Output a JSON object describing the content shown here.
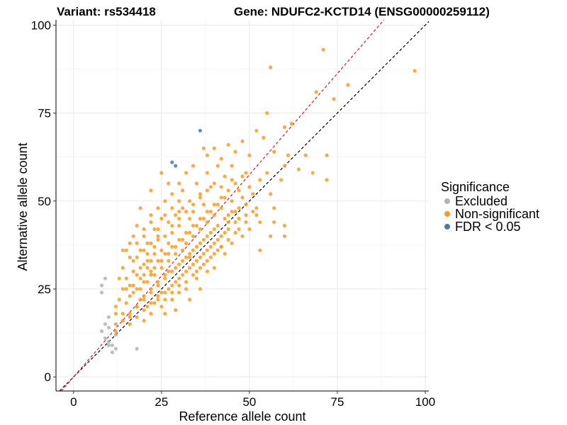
{
  "chart_data": {
    "type": "scatter",
    "title_left": "Variant: rs534418",
    "title_right": "Gene: NDUFC2-KCTD14 (ENSG00000259112)",
    "xlabel": "Reference allele count",
    "ylabel": "Alternative allele count",
    "xlim": [
      -5,
      101
    ],
    "ylim": [
      -4,
      101.5
    ],
    "xticks": [
      0,
      25,
      50,
      75,
      100
    ],
    "yticks": [
      0,
      25,
      50,
      75,
      100
    ],
    "grid": true,
    "legend": {
      "title": "Significance",
      "position": "right",
      "items": [
        {
          "label": "Excluded",
          "color": "#b3b3b3"
        },
        {
          "label": "Non-significant",
          "color": "#ff9a1f"
        },
        {
          "label": "FDR < 0.05",
          "color": "#4a79b0"
        }
      ]
    },
    "reference_lines": [
      {
        "slope": 1,
        "intercept": 0,
        "color": "#000000",
        "style": "dashed"
      },
      {
        "slope": 1.15,
        "intercept": 0,
        "color": "#e41a1c",
        "style": "dashed"
      }
    ],
    "series": [
      {
        "name": "Excluded",
        "color": "#b3b3b3",
        "points": [
          [
            8,
            26
          ],
          [
            8,
            24
          ],
          [
            9,
            28
          ],
          [
            10,
            17
          ],
          [
            9,
            15
          ],
          [
            10,
            14
          ],
          [
            8,
            13
          ],
          [
            9,
            11
          ],
          [
            10,
            10
          ],
          [
            11,
            9
          ],
          [
            11,
            7
          ],
          [
            12,
            8
          ],
          [
            10,
            9
          ],
          [
            18,
            8
          ],
          [
            12,
            12
          ]
        ]
      },
      {
        "name": "Non-significant",
        "color": "#ff9a1f",
        "points": [
          [
            71,
            93
          ],
          [
            56,
            88
          ],
          [
            97,
            87
          ],
          [
            69,
            81
          ],
          [
            78,
            83
          ],
          [
            74,
            79
          ],
          [
            55,
            75
          ],
          [
            62,
            72
          ],
          [
            60,
            71
          ],
          [
            52,
            70
          ],
          [
            54,
            68
          ],
          [
            48,
            67
          ],
          [
            44,
            66
          ],
          [
            46,
            64
          ],
          [
            40,
            65
          ],
          [
            38,
            63
          ],
          [
            42,
            62
          ],
          [
            50,
            63
          ],
          [
            57,
            64
          ],
          [
            61,
            63
          ],
          [
            66,
            63
          ],
          [
            72,
            63
          ],
          [
            60,
            60
          ],
          [
            64,
            59
          ],
          [
            68,
            58
          ],
          [
            72,
            56
          ],
          [
            59,
            56
          ],
          [
            55,
            58
          ],
          [
            56,
            52
          ],
          [
            51,
            52
          ],
          [
            47,
            53
          ],
          [
            52,
            48
          ],
          [
            53,
            44
          ],
          [
            57,
            44
          ],
          [
            60,
            43
          ],
          [
            56,
            40
          ],
          [
            60,
            40
          ],
          [
            53,
            36
          ],
          [
            57,
            48
          ],
          [
            32,
            58
          ],
          [
            30,
            55
          ],
          [
            27,
            55
          ],
          [
            25,
            58
          ],
          [
            28,
            52
          ],
          [
            33,
            50
          ],
          [
            36,
            52
          ],
          [
            41,
            60
          ],
          [
            45,
            56
          ],
          [
            49,
            58
          ],
          [
            22,
            53
          ],
          [
            19,
            48
          ],
          [
            22,
            46
          ],
          [
            23,
            42
          ],
          [
            20,
            40
          ],
          [
            18,
            38
          ],
          [
            14,
            36
          ],
          [
            16,
            34
          ],
          [
            21,
            35
          ],
          [
            17,
            33
          ],
          [
            22,
            30
          ],
          [
            19,
            28
          ],
          [
            17,
            26
          ],
          [
            15,
            25
          ],
          [
            13,
            22
          ],
          [
            12,
            20
          ],
          [
            14,
            18
          ],
          [
            12,
            15
          ],
          [
            16,
            15
          ],
          [
            12,
            13
          ],
          [
            15,
            21
          ],
          [
            18,
            20
          ],
          [
            20,
            23
          ],
          [
            22,
            25
          ],
          [
            24,
            27
          ],
          [
            26,
            29
          ],
          [
            23,
            31
          ],
          [
            20,
            32
          ],
          [
            25,
            33
          ],
          [
            27,
            35
          ],
          [
            29,
            37
          ],
          [
            31,
            39
          ],
          [
            33,
            41
          ],
          [
            35,
            43
          ],
          [
            37,
            45
          ],
          [
            39,
            47
          ],
          [
            41,
            49
          ],
          [
            43,
            51
          ],
          [
            45,
            50
          ],
          [
            47,
            48
          ],
          [
            49,
            46
          ],
          [
            44,
            44
          ],
          [
            40,
            42
          ],
          [
            38,
            40
          ],
          [
            36,
            38
          ],
          [
            34,
            36
          ],
          [
            32,
            34
          ],
          [
            30,
            32
          ],
          [
            28,
            30
          ],
          [
            26,
            28
          ],
          [
            24,
            26
          ],
          [
            22,
            24
          ],
          [
            20,
            22
          ],
          [
            18,
            20
          ],
          [
            16,
            18
          ],
          [
            24,
            22
          ],
          [
            26,
            24
          ],
          [
            28,
            26
          ],
          [
            30,
            28
          ],
          [
            32,
            30
          ],
          [
            34,
            32
          ],
          [
            36,
            34
          ],
          [
            38,
            36
          ],
          [
            40,
            38
          ],
          [
            42,
            40
          ],
          [
            44,
            42
          ],
          [
            46,
            44
          ],
          [
            48,
            40
          ],
          [
            50,
            42
          ],
          [
            52,
            46
          ],
          [
            43,
            35
          ],
          [
            38,
            30
          ],
          [
            35,
            28
          ],
          [
            32,
            27
          ],
          [
            30,
            24
          ],
          [
            28,
            22
          ],
          [
            25,
            20
          ],
          [
            22,
            18
          ],
          [
            20,
            16
          ],
          [
            26,
            18
          ],
          [
            29,
            19
          ],
          [
            33,
            22
          ],
          [
            36,
            25
          ],
          [
            40,
            31
          ],
          [
            42,
            37
          ],
          [
            27,
            44
          ],
          [
            29,
            46
          ],
          [
            31,
            48
          ],
          [
            26,
            46
          ],
          [
            24,
            40
          ],
          [
            27,
            38
          ],
          [
            25,
            36
          ],
          [
            23,
            37
          ],
          [
            21,
            38
          ],
          [
            19,
            36
          ],
          [
            17,
            30
          ],
          [
            15,
            28
          ],
          [
            25,
            45
          ],
          [
            30,
            50
          ],
          [
            34,
            47
          ],
          [
            37,
            49
          ],
          [
            39,
            54
          ],
          [
            43,
            57
          ],
          [
            35,
            55
          ],
          [
            31,
            53
          ],
          [
            33,
            45
          ],
          [
            28,
            41
          ],
          [
            30,
            43
          ],
          [
            32,
            38
          ],
          [
            34,
            40
          ],
          [
            36,
            42
          ],
          [
            38,
            44
          ],
          [
            40,
            46
          ],
          [
            42,
            48
          ],
          [
            21,
            27
          ],
          [
            23,
            29
          ],
          [
            25,
            31
          ],
          [
            27,
            33
          ],
          [
            29,
            35
          ],
          [
            31,
            36
          ],
          [
            33,
            34
          ],
          [
            35,
            30
          ],
          [
            37,
            32
          ],
          [
            39,
            34
          ],
          [
            41,
            36
          ],
          [
            45,
            38
          ],
          [
            47,
            42
          ],
          [
            49,
            44
          ],
          [
            46,
            47
          ],
          [
            44,
            46
          ],
          [
            48,
            51
          ],
          [
            50,
            54
          ],
          [
            53,
            56
          ],
          [
            45,
            60
          ],
          [
            38,
            58
          ],
          [
            34,
            60
          ],
          [
            37,
            65
          ],
          [
            30,
            47
          ],
          [
            28,
            48
          ],
          [
            26,
            50
          ],
          [
            24,
            48
          ],
          [
            22,
            44
          ],
          [
            20,
            42
          ],
          [
            18,
            43
          ],
          [
            17,
            40
          ],
          [
            16,
            38
          ],
          [
            15,
            36
          ],
          [
            14,
            31
          ],
          [
            13,
            28
          ],
          [
            14,
            25
          ],
          [
            16,
            23
          ],
          [
            18,
            25
          ],
          [
            19,
            22
          ],
          [
            21,
            20
          ],
          [
            23,
            21
          ],
          [
            25,
            24
          ],
          [
            27,
            25
          ],
          [
            29,
            27
          ],
          [
            31,
            29
          ],
          [
            33,
            31
          ],
          [
            35,
            33
          ],
          [
            37,
            35
          ],
          [
            39,
            37
          ],
          [
            41,
            39
          ],
          [
            43,
            41
          ],
          [
            23,
            35
          ],
          [
            21,
            33
          ],
          [
            19,
            31
          ],
          [
            18,
            29
          ],
          [
            20,
            27
          ],
          [
            22,
            29
          ],
          [
            24,
            33
          ],
          [
            26,
            35
          ],
          [
            28,
            37
          ],
          [
            30,
            39
          ],
          [
            32,
            41
          ],
          [
            34,
            43
          ],
          [
            36,
            45
          ],
          [
            38,
            47
          ],
          [
            40,
            49
          ],
          [
            42,
            51
          ],
          [
            44,
            53
          ],
          [
            46,
            55
          ],
          [
            48,
            57
          ],
          [
            24,
            39
          ],
          [
            26,
            40
          ],
          [
            28,
            43
          ],
          [
            30,
            45
          ],
          [
            32,
            47
          ],
          [
            34,
            49
          ],
          [
            36,
            51
          ],
          [
            38,
            53
          ],
          [
            40,
            55
          ],
          [
            42,
            54
          ],
          [
            18,
            34
          ],
          [
            20,
            36
          ],
          [
            22,
            38
          ],
          [
            24,
            42
          ],
          [
            16,
            26
          ],
          [
            17,
            24
          ],
          [
            19,
            25
          ],
          [
            20,
            29
          ],
          [
            21,
            31
          ],
          [
            22,
            33
          ],
          [
            27,
            30
          ],
          [
            29,
            31
          ],
          [
            31,
            33
          ],
          [
            33,
            35
          ],
          [
            35,
            37
          ],
          [
            37,
            39
          ],
          [
            39,
            41
          ],
          [
            41,
            43
          ],
          [
            43,
            45
          ],
          [
            45,
            47
          ],
          [
            47,
            45
          ],
          [
            49,
            49
          ],
          [
            51,
            47
          ],
          [
            46,
            41
          ],
          [
            44,
            39
          ],
          [
            42,
            37
          ],
          [
            40,
            35
          ],
          [
            38,
            33
          ],
          [
            36,
            31
          ],
          [
            34,
            29
          ],
          [
            32,
            25
          ],
          [
            30,
            26
          ],
          [
            28,
            24
          ],
          [
            26,
            22
          ],
          [
            24,
            23
          ],
          [
            22,
            21
          ],
          [
            20,
            19
          ],
          [
            18,
            17
          ],
          [
            16,
            17
          ],
          [
            14,
            16
          ],
          [
            12,
            18
          ]
        ]
      },
      {
        "name": "FDR < 0.05",
        "color": "#4a79b0",
        "points": [
          [
            36,
            70
          ],
          [
            28,
            61
          ],
          [
            29,
            60
          ]
        ]
      }
    ]
  }
}
